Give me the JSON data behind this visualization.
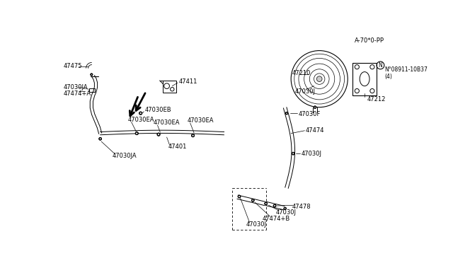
{
  "bg_color": "#ffffff",
  "line_color": "#000000",
  "diagram_code": "A-70*0-PP",
  "parts": {
    "47030J_top": "47030J",
    "47474B": "47474+B",
    "47030J_top2": "47030J",
    "47478": "47478",
    "47030J_right": "47030J",
    "47474": "47474",
    "47030F": "47030F",
    "47212": "47212",
    "47030J_booster": "47030J",
    "47210": "47210",
    "N08911": "N°08911-10B37\n(4)",
    "47030JA_top": "47030JA",
    "47401": "47401",
    "47030EA_1": "47030EA",
    "47030EA_2": "47030EA",
    "47030EA_3": "47030EA",
    "47030EB": "47030EB",
    "47474A": "47474+A",
    "47030JA_bot": "47030JA",
    "47475": "47475",
    "47411": "47411"
  }
}
